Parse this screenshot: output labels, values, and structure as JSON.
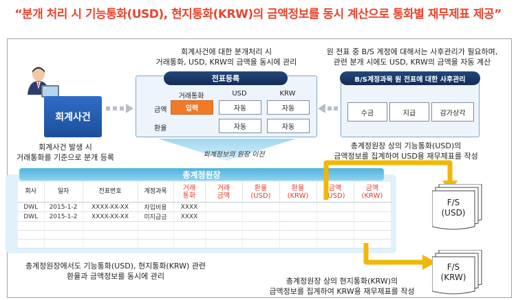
{
  "title": "“분개 처리 시 기능통화(USD), 현지통화(KRW)의 금액정보를 동시 계산으로 통화별 재무제표 제공”",
  "event": {
    "box_label": "회계사건",
    "caption_1": "회계사건 발생 시",
    "caption_2": "거래통화를 기준으로 분개 등록"
  },
  "entry": {
    "caption_1": "회계사건에 대한 분개처리 시",
    "caption_2": "거래통화, USD, KRW의 금액을 동시에 관리",
    "header": "전표등록",
    "col_headers": [
      "거래통화",
      "USD",
      "KRW"
    ],
    "row_labels": [
      "금액",
      "환율"
    ],
    "input_label": "입력",
    "auto_label": "자동"
  },
  "bs": {
    "caption_1": "원 전표 중 B/S 계정에 대해서는 사후관리가 필요하며,",
    "caption_2": "관련 분개 시에도 USD, KRW의 금액을 자동 계산",
    "header": "B/S계정과목 원 전표에 대한 사후관리",
    "buttons": [
      "수금",
      "지급",
      "감가상각"
    ]
  },
  "transfer_label": "회계정보의 원장 이전",
  "ledger": {
    "title": "총계정원장",
    "headers": [
      "회사",
      "일자",
      "전표번호",
      "계정과목",
      "거래\n통화",
      "거래\n금액",
      "환율\n(USD)",
      "환율\n(KRW)",
      "금액\n(USD)",
      "금액\n(KRW)"
    ],
    "rows": [
      [
        "DWL",
        "2015-1-2",
        "XXXX-XX-XX",
        "차입비용",
        "XXXX",
        "",
        "",
        "",
        "",
        ""
      ],
      [
        "DWL",
        "2015-1-2",
        "XXXX-XX-XX",
        "미지급금",
        "XXXX",
        "",
        "",
        "",
        "",
        ""
      ]
    ],
    "caption_1": "총계정원장에서도 기능통화(USD), 현지통화(KRW) 관련",
    "caption_2": "환율과 금액정보를 동시에  관리"
  },
  "usd_note": {
    "line_1": "총계정원장 상의 기능통화(USD)의",
    "line_2": "금액정보를 집계하여 USD용 재무제표를 작성"
  },
  "krw_note": {
    "line_1": "총계정원장 상의 현지통화(KRW)의",
    "line_2": "금액정보를 집계하여 KRW용 재무제표를 작성"
  },
  "fs_usd": {
    "line_1": "F/S",
    "line_2": "(USD)"
  },
  "fs_krw": {
    "line_1": "F/S",
    "line_2": "(KRW)"
  },
  "colors": {
    "title": "#e8452c",
    "arrow": "#f2b705",
    "navy": "#1f3f72",
    "ledger_bg": "#dff1fb"
  }
}
